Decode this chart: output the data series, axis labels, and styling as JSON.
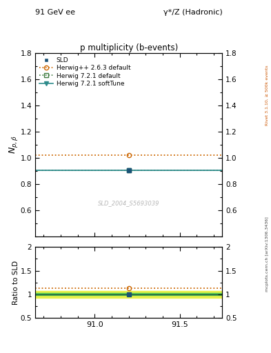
{
  "title_top_left": "91 GeV ee",
  "title_top_right": "γ*/Z (Hadronic)",
  "main_title": "p multiplicity (b-events)",
  "ylabel_main": "$N_{p,\\bar{p}}$",
  "ylabel_ratio": "Ratio to SLD",
  "watermark": "SLD_2004_S5693039",
  "right_label_top": "Rivet 3.1.10, ≥ 500k events",
  "right_label_bottom": "mcplots.cern.ch [arXiv:1306.3436]",
  "xlim": [
    90.65,
    91.75
  ],
  "xticks": [
    91.0,
    91.5
  ],
  "main_ylim": [
    0.4,
    1.8
  ],
  "main_yticks": [
    0.6,
    0.8,
    1.0,
    1.2,
    1.4,
    1.6,
    1.8
  ],
  "ratio_ylim": [
    0.5,
    2.0
  ],
  "ratio_yticks": [
    0.5,
    1.0,
    1.5,
    2.0
  ],
  "ratio_ytick_labels": [
    "0.5",
    "1",
    "1.5",
    "2"
  ],
  "x_data": 91.2,
  "sld_value": 0.905,
  "sld_err": 0.0,
  "herwig_pp_value": 1.02,
  "herwig721_value": 0.905,
  "herwig721_softtune_value": 0.905,
  "sld_color": "#1a5276",
  "herwig_pp_color": "#cc6600",
  "herwig721_color": "#3d7a3d",
  "herwig721_softtune_color": "#2e8b8b",
  "band_yellow": "#e8f04a",
  "band_green": "#50c850",
  "ratio_herwig_pp": 1.127,
  "ratio_herwig721": 1.0,
  "background_color": "#ffffff",
  "legend_labels": [
    "SLD",
    "Herwig++ 2.6.3 default",
    "Herwig 7.2.1 default",
    "Herwig 7.2.1 softTune"
  ]
}
